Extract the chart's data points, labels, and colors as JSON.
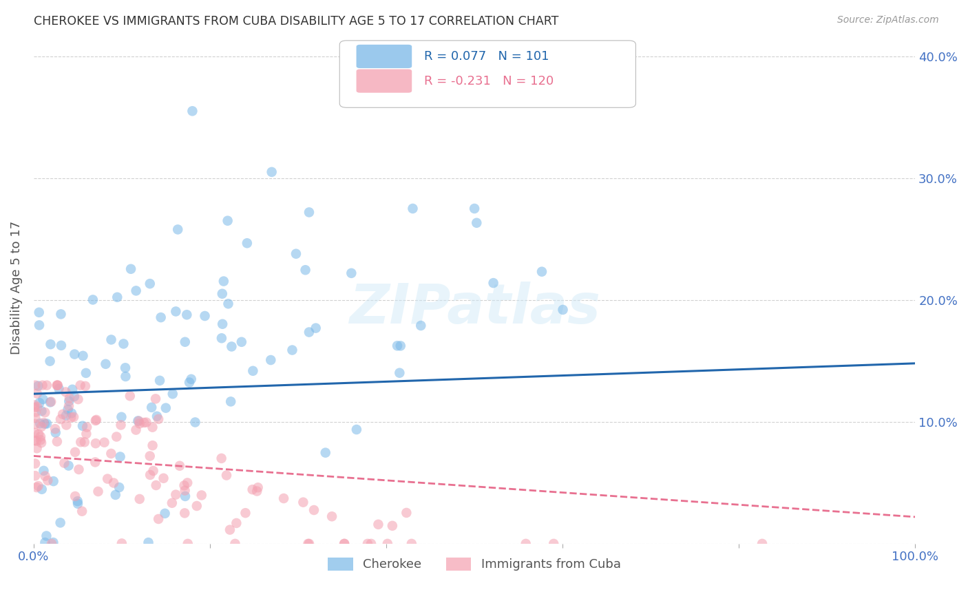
{
  "title": "CHEROKEE VS IMMIGRANTS FROM CUBA DISABILITY AGE 5 TO 17 CORRELATION CHART",
  "source": "Source: ZipAtlas.com",
  "ylabel": "Disability Age 5 to 17",
  "cherokee_R": 0.077,
  "cherokee_N": 101,
  "cuba_R": -0.231,
  "cuba_N": 120,
  "cherokee_color": "#7ab8e8",
  "cuba_color": "#f4a0b0",
  "cherokee_line_color": "#2166ac",
  "cuba_line_color": "#e87090",
  "bg_color": "#ffffff",
  "grid_color": "#cccccc",
  "axis_label_color": "#4472c4",
  "xlim": [
    0.0,
    1.0
  ],
  "ylim": [
    0.0,
    0.42
  ],
  "cherokee_line_x0": 0.0,
  "cherokee_line_y0": 0.123,
  "cherokee_line_x1": 1.0,
  "cherokee_line_y1": 0.148,
  "cuba_line_x0": 0.0,
  "cuba_line_y0": 0.072,
  "cuba_line_x1": 1.0,
  "cuba_line_y1": 0.022,
  "seed": 42
}
